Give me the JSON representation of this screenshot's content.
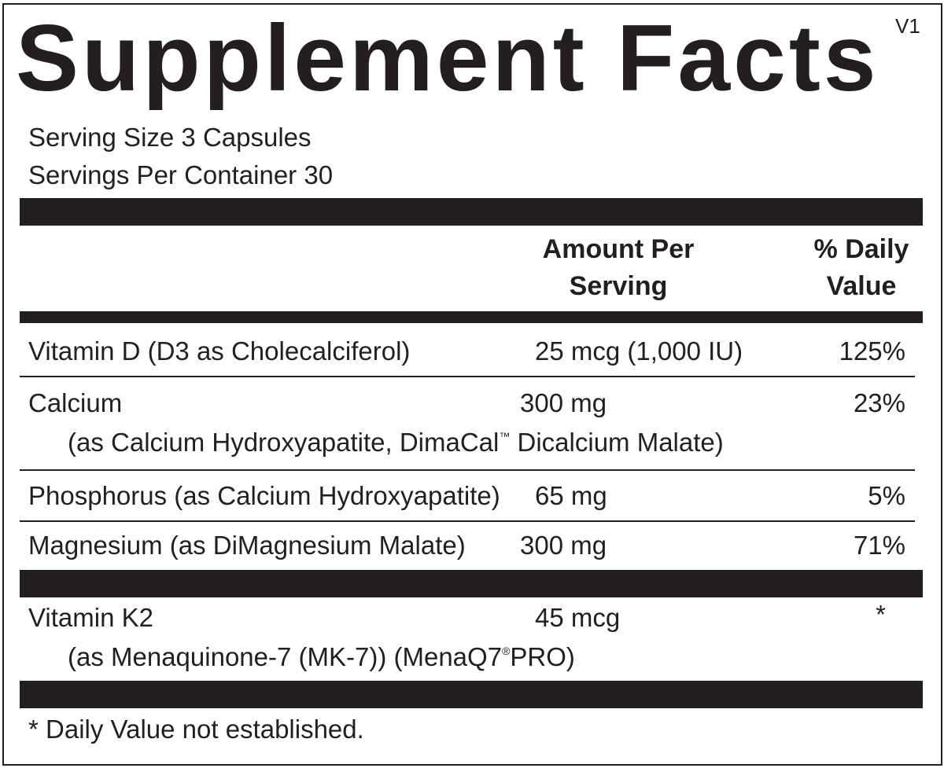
{
  "title": "Supplement Facts",
  "version": "V1",
  "serving_size": "Serving Size 3 Capsules",
  "servings_per_container": "Servings Per Container 30",
  "header": {
    "amount_line1": "Amount Per",
    "amount_line2": "Serving",
    "dv_line1": "% Daily",
    "dv_line2": "Value"
  },
  "rows": [
    {
      "name": "Vitamin D (D3 as Cholecalciferol)",
      "amount": "25 mcg (1,000 IU)",
      "dv": "125%"
    },
    {
      "name": "Calcium",
      "sub_before": "(as Calcium Hydroxyapatite, DimaCal",
      "sub_mark": "™",
      "sub_after": " Dicalcium Malate)",
      "amount": "300 mg",
      "dv": "23%"
    },
    {
      "name": "Phosphorus (as Calcium Hydroxyapatite)",
      "amount": "65 mg",
      "dv": "5%"
    },
    {
      "name": "Magnesium (as DiMagnesium Malate)",
      "amount": "300 mg",
      "dv": "71%"
    },
    {
      "name": "Vitamin K2",
      "sub_before": "(as Menaquinone-7 (MK-7)) (MenaQ7",
      "sub_mark": "®",
      "sub_after": "PRO)",
      "amount": "45 mcg",
      "dv": "*"
    }
  ],
  "footnote": "* Daily Value not established."
}
